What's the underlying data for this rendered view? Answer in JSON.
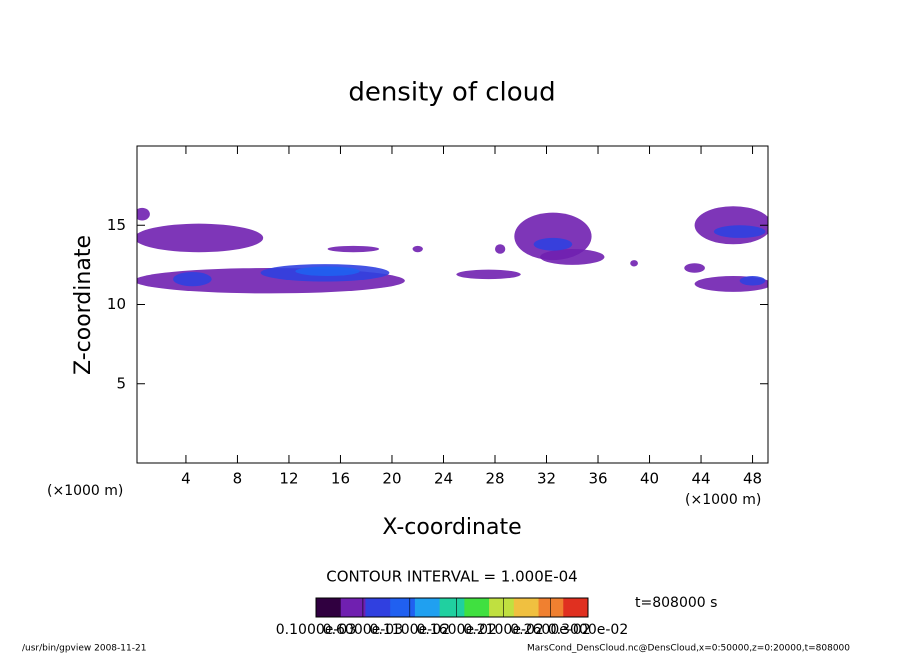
{
  "chart_data": {
    "type": "contour",
    "title": "density of cloud",
    "x_label": "X-coordinate",
    "y_label": "Z-coordinate",
    "x_unit": "(×1000 m)",
    "y_unit": "(×1000 m)",
    "xlim": [
      0.2,
      49.2
    ],
    "ylim": [
      0,
      20
    ],
    "xticks": [
      4,
      8,
      12,
      16,
      20,
      24,
      28,
      32,
      36,
      40,
      44,
      48
    ],
    "yticks": [
      5,
      10,
      15
    ],
    "contour_interval": "CONTOUR INTERVAL = 1.000E-04",
    "time_label": "t=808000 s",
    "colorbar": {
      "lim": [
        0.1,
        3.0
      ],
      "colormap": [
        "#300040",
        "#7020b0",
        "#3040e0",
        "#2060f0",
        "#20a0f0",
        "#20d0a0",
        "#40e040",
        "#c0e040",
        "#f0c040",
        "#f08030",
        "#e03020"
      ],
      "ticks": [
        {
          "value": 0.1,
          "label": "0.1000e-03"
        },
        {
          "value": 0.6,
          "label": "0.6000e-03"
        },
        {
          "value": 1.1,
          "label": "0.1100e-02"
        },
        {
          "value": 1.6,
          "label": "0.1600e-02"
        },
        {
          "value": 2.1,
          "label": "0.2100e-02"
        },
        {
          "value": 2.6,
          "label": "0.2600e-02"
        },
        {
          "value": 3.0,
          "label": "0.3000e-02"
        }
      ]
    },
    "blobs": [
      {
        "x": 5,
        "z": 14.2,
        "rx": 5,
        "rz": 0.9,
        "value": 0.4
      },
      {
        "x": 0.6,
        "z": 15.7,
        "rx": 0.6,
        "rz": 0.4,
        "value": 0.4
      },
      {
        "x": 10.5,
        "z": 11.5,
        "rx": 10.5,
        "rz": 0.8,
        "value": 0.4
      },
      {
        "x": 14.8,
        "z": 12.0,
        "rx": 5,
        "rz": 0.55,
        "value": 0.8
      },
      {
        "x": 15,
        "z": 12.1,
        "rx": 2.5,
        "rz": 0.3,
        "value": 1.0
      },
      {
        "x": 4.5,
        "z": 11.6,
        "rx": 1.5,
        "rz": 0.45,
        "value": 0.8
      },
      {
        "x": 17,
        "z": 13.5,
        "rx": 2,
        "rz": 0.2,
        "value": 0.4
      },
      {
        "x": 22,
        "z": 13.5,
        "rx": 0.4,
        "rz": 0.2,
        "value": 0.4
      },
      {
        "x": 28.4,
        "z": 13.5,
        "rx": 0.4,
        "rz": 0.3,
        "value": 0.4
      },
      {
        "x": 27.5,
        "z": 11.9,
        "rx": 2.5,
        "rz": 0.3,
        "value": 0.4
      },
      {
        "x": 32.5,
        "z": 14.3,
        "rx": 3,
        "rz": 1.5,
        "value": 0.4
      },
      {
        "x": 34,
        "z": 13.0,
        "rx": 2.5,
        "rz": 0.5,
        "value": 0.4
      },
      {
        "x": 32.5,
        "z": 13.8,
        "rx": 1.5,
        "rz": 0.4,
        "value": 0.8
      },
      {
        "x": 38.8,
        "z": 12.6,
        "rx": 0.3,
        "rz": 0.2,
        "value": 0.4
      },
      {
        "x": 43.5,
        "z": 12.3,
        "rx": 0.8,
        "rz": 0.3,
        "value": 0.4
      },
      {
        "x": 46.5,
        "z": 15.0,
        "rx": 3,
        "rz": 1.2,
        "value": 0.4
      },
      {
        "x": 47,
        "z": 14.6,
        "rx": 2,
        "rz": 0.4,
        "value": 0.8
      },
      {
        "x": 46.5,
        "z": 11.3,
        "rx": 3,
        "rz": 0.5,
        "value": 0.4
      },
      {
        "x": 48,
        "z": 11.5,
        "rx": 1,
        "rz": 0.3,
        "value": 0.8
      }
    ],
    "footer_left": "/usr/bin/gpview   2008-11-21",
    "footer_right": "MarsCond_DensCloud.nc@DensCloud,x=0:50000,z=0:20000,t=808000"
  }
}
